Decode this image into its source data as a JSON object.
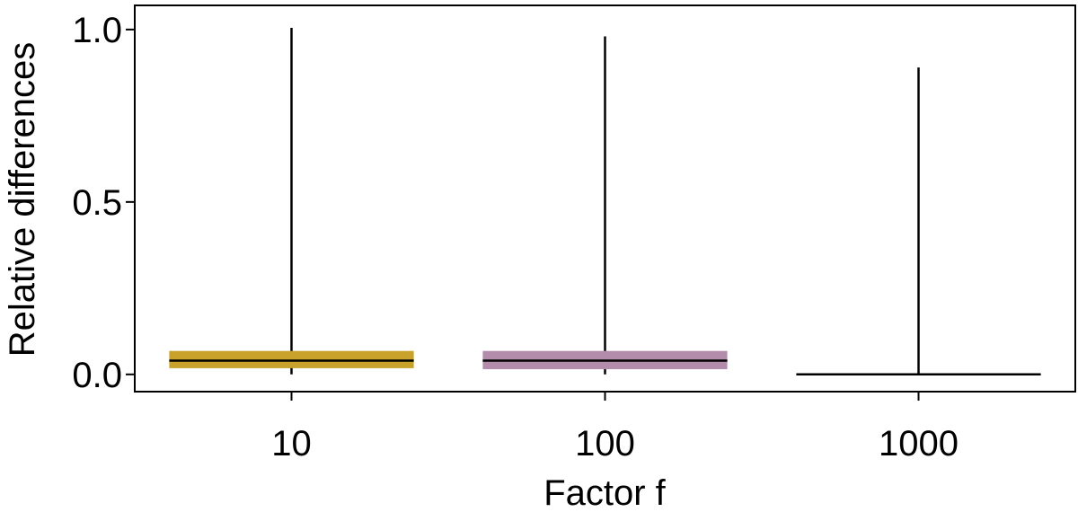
{
  "chart_data": {
    "type": "boxplot",
    "title": "",
    "xlabel": "Factor f",
    "ylabel": "Relative differences",
    "ylim": [
      -0.05,
      1.07
    ],
    "yticks": [
      {
        "value": 0.0,
        "label": "0.0"
      },
      {
        "value": 0.5,
        "label": "0.5"
      },
      {
        "value": 1.0,
        "label": "1.0"
      }
    ],
    "grid": false,
    "legend": "none",
    "categories": [
      "10",
      "100",
      "1000"
    ],
    "boxes": [
      {
        "category": "10",
        "q1": 0.018,
        "median": 0.04,
        "q3": 0.068,
        "whisker_low": 0.0,
        "whisker_high": 1.005,
        "color": "#c8a22a"
      },
      {
        "category": "100",
        "q1": 0.015,
        "median": 0.04,
        "q3": 0.068,
        "whisker_low": 0.0,
        "whisker_high": 0.98,
        "color": "#b48cab"
      },
      {
        "category": "1000",
        "q1": 0.0,
        "median": 0.0,
        "q3": 0.0,
        "whisker_low": 0.0,
        "whisker_high": 0.89,
        "color": "#000000"
      }
    ]
  }
}
